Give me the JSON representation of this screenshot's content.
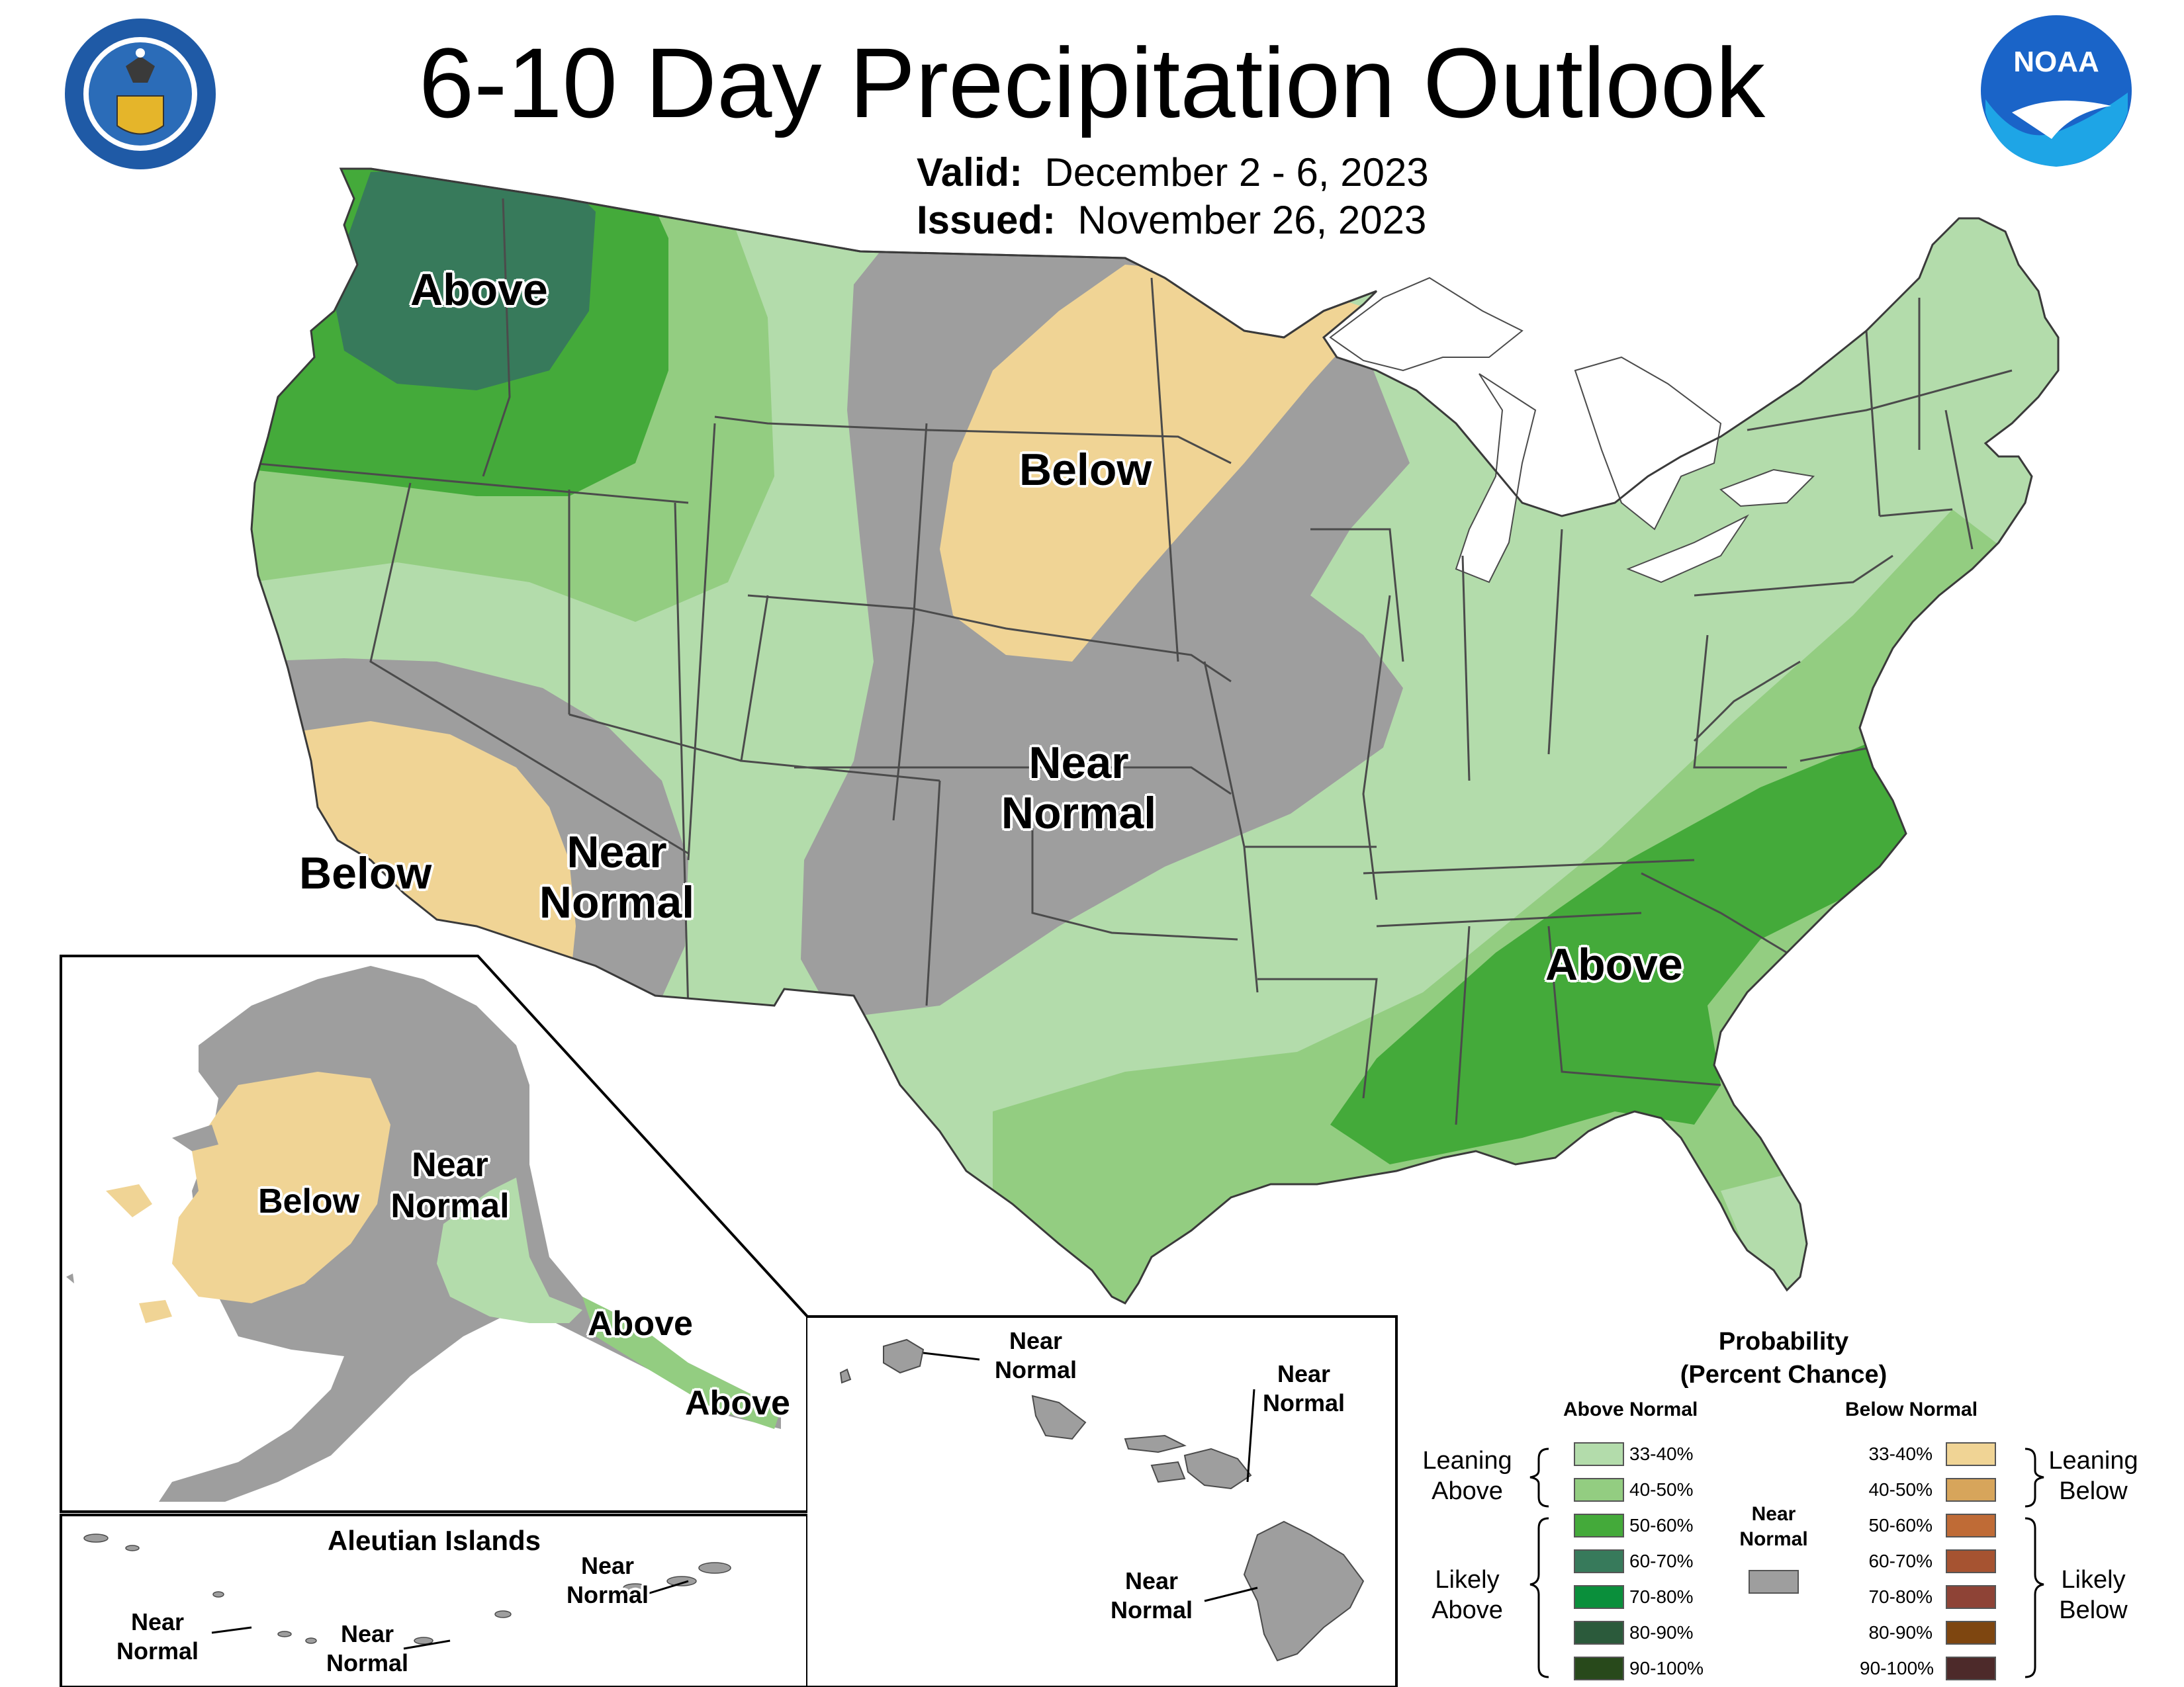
{
  "title": "6-10 Day Precipitation Outlook",
  "valid": {
    "label": "Valid:",
    "value": "December 2 - 6, 2023"
  },
  "issued": {
    "label": "Issued:",
    "value": "November 26, 2023"
  },
  "logos": {
    "left": "department-of-commerce-seal",
    "right": "noaa-logo",
    "noaa_text": "NOAA"
  },
  "conus_labels": {
    "northwest": "Above",
    "north_central": "Below",
    "california": "Below",
    "southwest": [
      "Near",
      "Normal"
    ],
    "plains": [
      "Near",
      "Normal"
    ],
    "southeast": "Above"
  },
  "alaska_labels": {
    "west": "Below",
    "central": [
      "Near",
      "Normal"
    ],
    "southeast_1": "Above",
    "southeast_2": "Above"
  },
  "aleutian": {
    "title": "Aleutian Islands",
    "labels": [
      [
        "Near",
        "Normal"
      ],
      [
        "Near",
        "Normal"
      ],
      [
        "Near",
        "Normal"
      ]
    ]
  },
  "hawaii_labels": [
    [
      "Near",
      "Normal"
    ],
    [
      "Near",
      "Normal"
    ],
    [
      "Near",
      "Normal"
    ]
  ],
  "legend": {
    "title_1": "Probability",
    "title_2": "(Percent Chance)",
    "above_header": "Above Normal",
    "below_header": "Below Normal",
    "near_normal": [
      "Near",
      "Normal"
    ],
    "near_normal_color": "#9e9e9e",
    "leaning_above": [
      "Leaning",
      "Above"
    ],
    "likely_above": [
      "Likely",
      "Above"
    ],
    "leaning_below": [
      "Leaning",
      "Below"
    ],
    "likely_below": [
      "Likely",
      "Below"
    ],
    "above": [
      {
        "range": "33-40%",
        "color": "#b3dcab"
      },
      {
        "range": "40-50%",
        "color": "#93cd81"
      },
      {
        "range": "50-60%",
        "color": "#44aa3a"
      },
      {
        "range": "60-70%",
        "color": "#377a5b"
      },
      {
        "range": "70-80%",
        "color": "#0a8f3b"
      },
      {
        "range": "80-90%",
        "color": "#2b5a3b"
      },
      {
        "range": "90-100%",
        "color": "#28491b"
      }
    ],
    "below": [
      {
        "range": "33-40%",
        "color": "#f0d495"
      },
      {
        "range": "40-50%",
        "color": "#d7a55b"
      },
      {
        "range": "50-60%",
        "color": "#bf6b36"
      },
      {
        "range": "60-70%",
        "color": "#a65331"
      },
      {
        "range": "70-80%",
        "color": "#8e4336"
      },
      {
        "range": "80-90%",
        "color": "#7e4610"
      },
      {
        "range": "90-100%",
        "color": "#4d2a2a"
      }
    ]
  },
  "colors": {
    "above_33_40": "#b3dcab",
    "above_40_50": "#93cd81",
    "above_50_60": "#44aa3a",
    "above_60_70": "#377a5b",
    "below_33_40": "#f0d495",
    "near_normal": "#9e9e9e",
    "lakes": "#ffffff",
    "boundaries": "#4b4b4b"
  }
}
